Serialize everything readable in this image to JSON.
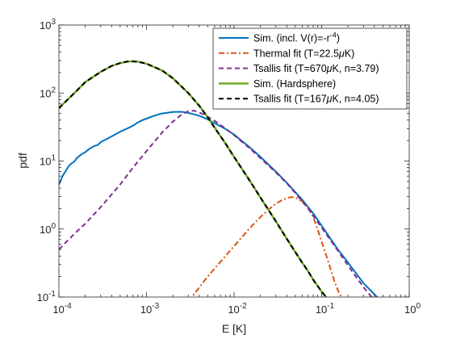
{
  "chart_data": {
    "type": "line",
    "xscale": "log",
    "yscale": "log",
    "xlim": [
      0.0001,
      1
    ],
    "ylim": [
      0.1,
      1000
    ],
    "xlabel": "E [K]",
    "ylabel": "pdf",
    "grid": false,
    "legend_position": "top-right",
    "xticks": [
      {
        "value": 0.0001,
        "mantissa": "10",
        "exp": "-4"
      },
      {
        "value": 0.001,
        "mantissa": "10",
        "exp": "-3"
      },
      {
        "value": 0.01,
        "mantissa": "10",
        "exp": "-2"
      },
      {
        "value": 0.1,
        "mantissa": "10",
        "exp": "-1"
      },
      {
        "value": 1,
        "mantissa": "10",
        "exp": "0"
      }
    ],
    "yticks": [
      {
        "value": 0.1,
        "mantissa": "10",
        "exp": "-1"
      },
      {
        "value": 1,
        "mantissa": "10",
        "exp": "0"
      },
      {
        "value": 10,
        "mantissa": "10",
        "exp": "1"
      },
      {
        "value": 100,
        "mantissa": "10",
        "exp": "2"
      },
      {
        "value": 1000,
        "mantissa": "10",
        "exp": "3"
      }
    ],
    "series": [
      {
        "name": "Sim. (incl. V(r)=-r",
        "name_sup": "-4",
        "name_after": ")",
        "color": "#0072BD",
        "dash": "solid",
        "points": [
          [
            0.0001,
            4.5
          ],
          [
            0.00011,
            6
          ],
          [
            0.00012,
            7.2
          ],
          [
            0.00013,
            8.5
          ],
          [
            0.00014,
            9.3
          ],
          [
            0.00015,
            9.8
          ],
          [
            0.00016,
            11
          ],
          [
            0.00018,
            12.5
          ],
          [
            0.0002,
            13.5
          ],
          [
            0.00022,
            15
          ],
          [
            0.00025,
            16.5
          ],
          [
            0.00028,
            17.3
          ],
          [
            0.0003,
            19
          ],
          [
            0.00035,
            21
          ],
          [
            0.0004,
            23
          ],
          [
            0.00045,
            25
          ],
          [
            0.0005,
            27
          ],
          [
            0.0006,
            30
          ],
          [
            0.0007,
            33
          ],
          [
            0.0008,
            37
          ],
          [
            0.0009,
            40
          ],
          [
            0.001,
            42
          ],
          [
            0.0012,
            46
          ],
          [
            0.0015,
            50
          ],
          [
            0.002,
            52.5
          ],
          [
            0.0025,
            53
          ],
          [
            0.003,
            51
          ],
          [
            0.004,
            46.5
          ],
          [
            0.005,
            41
          ],
          [
            0.006,
            36
          ],
          [
            0.008,
            29.5
          ],
          [
            0.01,
            24.5
          ],
          [
            0.015,
            16
          ],
          [
            0.02,
            11.5
          ],
          [
            0.03,
            7
          ],
          [
            0.04,
            4.8
          ],
          [
            0.05,
            3.5
          ],
          [
            0.06,
            2.7
          ],
          [
            0.08,
            1.7
          ],
          [
            0.1,
            1.12
          ],
          [
            0.15,
            0.52
          ],
          [
            0.2,
            0.32
          ],
          [
            0.3,
            0.16
          ],
          [
            0.4,
            0.11
          ],
          [
            0.43,
            0.1
          ]
        ]
      },
      {
        "name": "Thermal fit (T=22.5",
        "name_mu": "μ",
        "name_after": "K)",
        "color": "#D95319",
        "dash": "dashdot",
        "points": [
          [
            0.003,
            0.085
          ],
          [
            0.005,
            0.2
          ],
          [
            0.007,
            0.33
          ],
          [
            0.01,
            0.56
          ],
          [
            0.015,
            1.02
          ],
          [
            0.02,
            1.5
          ],
          [
            0.025,
            1.95
          ],
          [
            0.03,
            2.35
          ],
          [
            0.035,
            2.65
          ],
          [
            0.04,
            2.85
          ],
          [
            0.045,
            2.95
          ],
          [
            0.05,
            2.9
          ],
          [
            0.06,
            2.55
          ],
          [
            0.07,
            2.05
          ],
          [
            0.08,
            1.5
          ],
          [
            0.09,
            1.0
          ],
          [
            0.1,
            0.65
          ],
          [
            0.12,
            0.32
          ],
          [
            0.14,
            0.17
          ],
          [
            0.16,
            0.11
          ],
          [
            0.18,
            0.095
          ]
        ]
      },
      {
        "name": "Tsallis fit (T=670",
        "name_mu": "μ",
        "name_after": "K, n=3.79)",
        "color": "#7E2F8E",
        "dash": "dashed",
        "points": [
          [
            0.0001,
            0.5
          ],
          [
            0.00015,
            0.85
          ],
          [
            0.0002,
            1.2
          ],
          [
            0.0003,
            2.1
          ],
          [
            0.0005,
            4.5
          ],
          [
            0.0007,
            8
          ],
          [
            0.001,
            14
          ],
          [
            0.0015,
            26
          ],
          [
            0.002,
            38
          ],
          [
            0.0025,
            48
          ],
          [
            0.003,
            54
          ],
          [
            0.0035,
            55
          ],
          [
            0.004,
            52
          ],
          [
            0.005,
            45
          ],
          [
            0.006,
            39
          ],
          [
            0.008,
            30
          ],
          [
            0.01,
            24
          ],
          [
            0.015,
            15.5
          ],
          [
            0.02,
            11
          ],
          [
            0.03,
            6.8
          ],
          [
            0.04,
            4.7
          ],
          [
            0.05,
            3.4
          ],
          [
            0.07,
            2.0
          ],
          [
            0.1,
            1.05
          ],
          [
            0.15,
            0.5
          ],
          [
            0.2,
            0.29
          ],
          [
            0.3,
            0.14
          ],
          [
            0.35,
            0.11
          ],
          [
            0.4,
            0.09
          ]
        ]
      },
      {
        "name": "Sim. (Hardsphere)",
        "color": "#77AC30",
        "dash": "solid",
        "points": [
          [
            0.0001,
            60
          ],
          [
            0.00015,
            100
          ],
          [
            0.0002,
            145
          ],
          [
            0.0003,
            205
          ],
          [
            0.0004,
            250
          ],
          [
            0.0005,
            275
          ],
          [
            0.0006,
            290
          ],
          [
            0.0007,
            292
          ],
          [
            0.0008,
            288
          ],
          [
            0.001,
            270
          ],
          [
            0.0015,
            215
          ],
          [
            0.002,
            165
          ],
          [
            0.003,
            100
          ],
          [
            0.004,
            65
          ],
          [
            0.005,
            44
          ],
          [
            0.006,
            31
          ],
          [
            0.008,
            18
          ],
          [
            0.01,
            11.5
          ],
          [
            0.015,
            5.2
          ],
          [
            0.02,
            2.9
          ],
          [
            0.03,
            1.3
          ],
          [
            0.04,
            0.72
          ],
          [
            0.05,
            0.46
          ],
          [
            0.06,
            0.32
          ],
          [
            0.07,
            0.24
          ],
          [
            0.08,
            0.18
          ],
          [
            0.1,
            0.12
          ],
          [
            0.12,
            0.09
          ]
        ]
      },
      {
        "name": "Tsallis fit (T=167",
        "name_mu": "μ",
        "name_after": "K, n=4.05)",
        "color": "#000000",
        "dash": "dashed",
        "points": [
          [
            0.0001,
            60
          ],
          [
            0.00015,
            100
          ],
          [
            0.0002,
            145
          ],
          [
            0.0003,
            205
          ],
          [
            0.0004,
            250
          ],
          [
            0.0005,
            275
          ],
          [
            0.0006,
            290
          ],
          [
            0.0007,
            292
          ],
          [
            0.0008,
            288
          ],
          [
            0.001,
            270
          ],
          [
            0.0015,
            215
          ],
          [
            0.002,
            165
          ],
          [
            0.003,
            100
          ],
          [
            0.004,
            65
          ],
          [
            0.005,
            44
          ],
          [
            0.006,
            31
          ],
          [
            0.008,
            18
          ],
          [
            0.01,
            11.5
          ],
          [
            0.015,
            5.2
          ],
          [
            0.02,
            2.9
          ],
          [
            0.03,
            1.3
          ],
          [
            0.04,
            0.72
          ],
          [
            0.05,
            0.46
          ],
          [
            0.06,
            0.32
          ],
          [
            0.07,
            0.24
          ],
          [
            0.08,
            0.18
          ],
          [
            0.1,
            0.12
          ],
          [
            0.12,
            0.09
          ]
        ]
      }
    ]
  }
}
